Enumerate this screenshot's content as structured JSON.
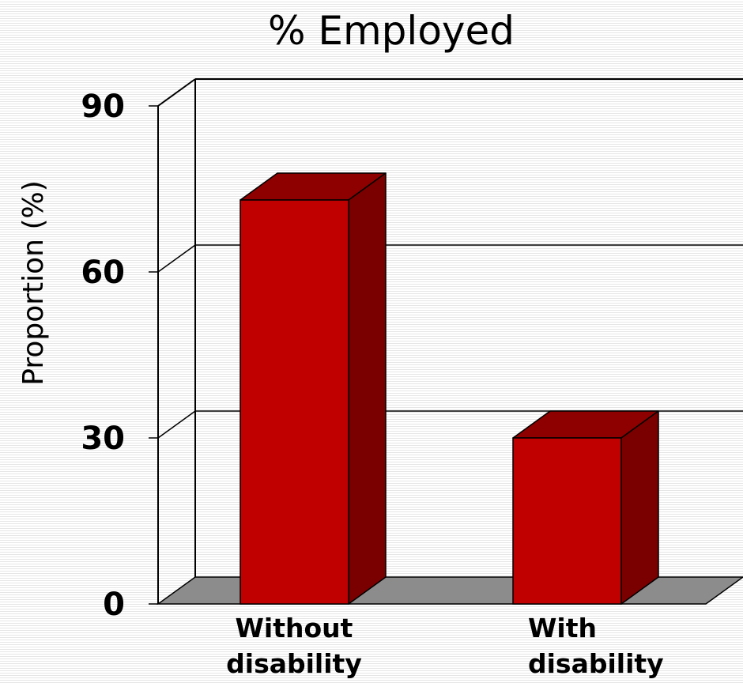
{
  "chart_data": {
    "type": "bar",
    "title": "% Employed",
    "xlabel": "",
    "ylabel": "Proportion (%)",
    "categories": [
      "Without disability",
      "With disability"
    ],
    "category_lines": [
      [
        "Without",
        "disability"
      ],
      [
        "With",
        "disability"
      ]
    ],
    "values": [
      73,
      30
    ],
    "ylim": [
      0,
      90
    ],
    "yticks": [
      "0",
      "30",
      "60",
      "90"
    ],
    "style": "3d",
    "grid": true,
    "colors": {
      "bar_front": "#c00000",
      "bar_top": "#8e0000",
      "bar_side": "#7a0000",
      "floor": "#8c8c8c"
    }
  }
}
